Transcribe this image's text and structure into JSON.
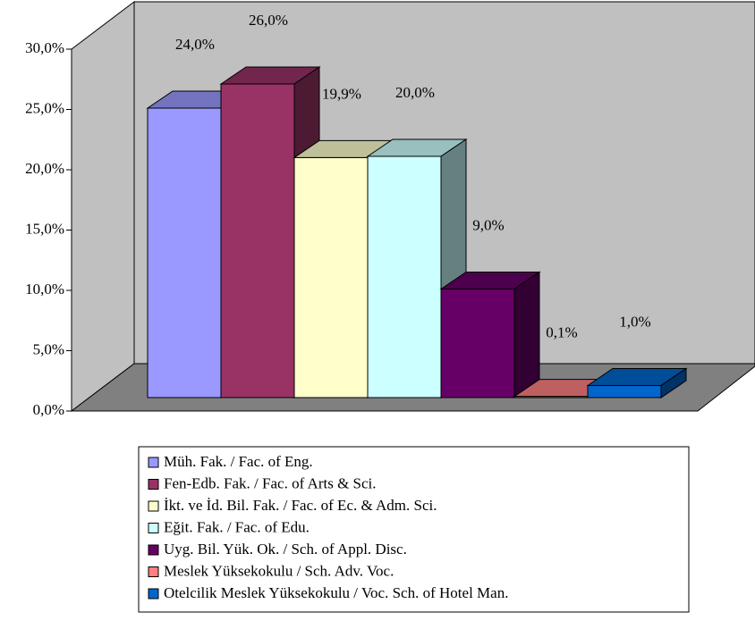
{
  "chart_data": {
    "type": "bar3d",
    "ylim": [
      0,
      30
    ],
    "yticks": [
      {
        "value": 0,
        "label": "0,0%"
      },
      {
        "value": 5,
        "label": "5,0%"
      },
      {
        "value": 10,
        "label": "10,0%"
      },
      {
        "value": 15,
        "label": "15,0%"
      },
      {
        "value": 20,
        "label": "20,0%"
      },
      {
        "value": 25,
        "label": "25,0%"
      },
      {
        "value": 30,
        "label": "30,0%"
      }
    ],
    "grid": false,
    "legend": "bottom",
    "series": [
      {
        "name": "Müh. Fak. / Fac. of Eng.",
        "color": "#9999ff",
        "values": [
          24.0
        ],
        "value_labels": [
          "24,0%"
        ]
      },
      {
        "name": "Fen-Edb. Fak. / Fac. of Arts & Sci.",
        "color": "#993366",
        "values": [
          26.0
        ],
        "value_labels": [
          "26,0%"
        ]
      },
      {
        "name": "İkt. ve İd. Bil. Fak. / Fac. of Ec. & Adm. Sci.",
        "color": "#ffffcc",
        "values": [
          19.9
        ],
        "value_labels": [
          "19,9%"
        ]
      },
      {
        "name": "Eğit. Fak. / Fac. of Edu.",
        "color": "#ccffff",
        "values": [
          20.0
        ],
        "value_labels": [
          "20,0%"
        ]
      },
      {
        "name": "Uyg. Bil. Yük. Ok. / Sch. of Appl. Disc.",
        "color": "#660066",
        "values": [
          9.0
        ],
        "value_labels": [
          "9,0%"
        ]
      },
      {
        "name": "Meslek Yüksekokulu / Sch. Adv. Voc.",
        "color": "#ff8080",
        "values": [
          0.1
        ],
        "value_labels": [
          "0,1%"
        ]
      },
      {
        "name": "Otelcilik Meslek Yüksekokulu / Voc. Sch. of Hotel Man.",
        "color": "#0066cc",
        "values": [
          1.0
        ],
        "value_labels": [
          "1,0%"
        ]
      }
    ]
  }
}
